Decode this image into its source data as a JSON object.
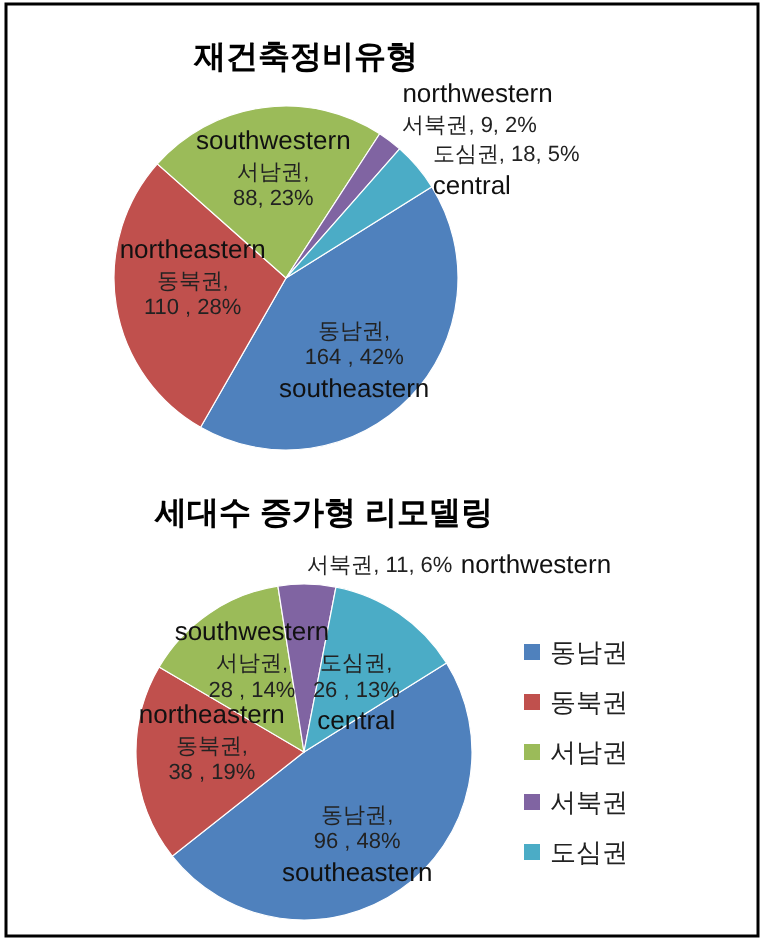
{
  "chart_data": [
    {
      "type": "pie",
      "title": "재건축정비유형",
      "categories": [
        "동남권",
        "동북권",
        "서남권",
        "서북권",
        "도심권"
      ],
      "values": [
        164,
        110,
        88,
        9,
        18
      ],
      "colors": [
        "#4f81bd",
        "#c0504d",
        "#9bbb59",
        "#8064a2",
        "#4bacc6"
      ],
      "value_labels": [
        ",\n164 , 42%",
        ",\n110 , 28%",
        ",\n88, 23%",
        ", 9, 2%",
        ", 18, 5%"
      ],
      "annotations": [
        "southeastern",
        "northeastern",
        "southwestern",
        "northwestern",
        "central"
      ],
      "legend": false
    },
    {
      "type": "pie",
      "title": "세대수 증가형 리모델링",
      "categories": [
        "동남권",
        "동북권",
        "서남권",
        "서북권",
        "도심권"
      ],
      "values": [
        96,
        38,
        28,
        11,
        26
      ],
      "colors": [
        "#4f81bd",
        "#c0504d",
        "#9bbb59",
        "#8064a2",
        "#4bacc6"
      ],
      "value_labels": [
        ",\n96 , 48%",
        ",\n38 , 19%",
        ",\n28 , 14%",
        ", 11, 6%",
        ",\n26 , 13%"
      ],
      "annotations": [
        "southeastern",
        "northeastern",
        "southwestern",
        "northwestern",
        "central"
      ],
      "legend": "right"
    }
  ]
}
